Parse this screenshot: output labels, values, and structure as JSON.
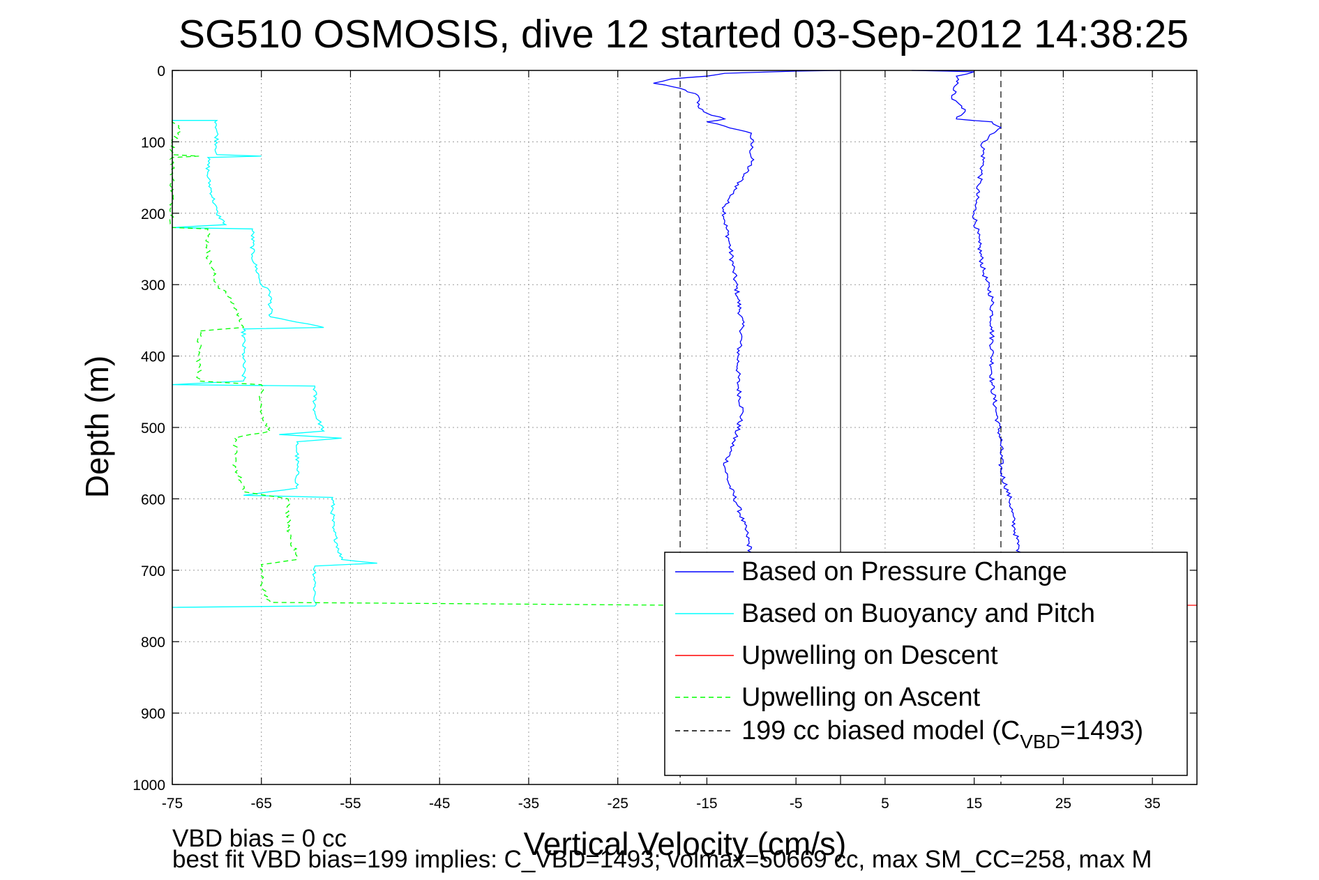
{
  "chart_data": {
    "type": "line",
    "title": "SG510 OSMOSIS, dive 12 started 03-Sep-2012 14:38:25",
    "xlabel": "Vertical Velocity (cm/s)",
    "ylabel": "Depth (m)",
    "xlim": [
      -75,
      40
    ],
    "ylim": [
      0,
      1000
    ],
    "y_reversed": true,
    "grid": true,
    "x_ticks": [
      "-75",
      "-65",
      "-55",
      "-45",
      "-35",
      "-25",
      "-15",
      "-5",
      "5",
      "15",
      "25",
      "35"
    ],
    "x_tick_values": [
      -75,
      -65,
      -55,
      -45,
      -35,
      -25,
      -15,
      -5,
      5,
      15,
      25,
      35
    ],
    "y_ticks": [
      "0",
      "100",
      "200",
      "300",
      "400",
      "500",
      "600",
      "700",
      "800",
      "900",
      "1000"
    ],
    "y_tick_values": [
      0,
      100,
      200,
      300,
      400,
      500,
      600,
      700,
      800,
      900,
      1000
    ],
    "legend_position": "bottom-right",
    "series": [
      {
        "name": "Based on Pressure Change",
        "color": "#0000ff",
        "style": "solid",
        "segments": [
          {
            "label": "descent",
            "points": [
              [
                0,
                0
              ],
              [
                -5,
                1
              ],
              [
                -13,
                4
              ],
              [
                -15,
                8
              ],
              [
                -19,
                12
              ],
              [
                -21,
                18
              ],
              [
                -18,
                25
              ],
              [
                -16,
                35
              ],
              [
                -16,
                50
              ],
              [
                -15,
                60
              ],
              [
                -13,
                68
              ],
              [
                -15,
                72
              ],
              [
                -13,
                78
              ],
              [
                -10,
                88
              ],
              [
                -10,
                110
              ],
              [
                -10,
                130
              ],
              [
                -11,
                150
              ],
              [
                -12,
                170
              ],
              [
                -13,
                190
              ],
              [
                -13,
                210
              ],
              [
                -12.5,
                240
              ],
              [
                -12,
                280
              ],
              [
                -11.5,
                320
              ],
              [
                -11,
                360
              ],
              [
                -11.5,
                400
              ],
              [
                -11.5,
                440
              ],
              [
                -11,
                480
              ],
              [
                -12,
                520
              ],
              [
                -13,
                555
              ],
              [
                -12.5,
                580
              ],
              [
                -11.5,
                610
              ],
              [
                -10.5,
                650
              ],
              [
                -10,
                680
              ]
            ]
          },
          {
            "label": "ascent",
            "points": [
              [
                8,
                0
              ],
              [
                12,
                1
              ],
              [
                15,
                2
              ],
              [
                13,
                8
              ],
              [
                13,
                20
              ],
              [
                12.5,
                40
              ],
              [
                14,
                55
              ],
              [
                13,
                68
              ],
              [
                17,
                72
              ],
              [
                18,
                80
              ],
              [
                16,
                100
              ],
              [
                16,
                130
              ],
              [
                15.5,
                160
              ],
              [
                15,
                200
              ],
              [
                15.5,
                240
              ],
              [
                16,
                280
              ],
              [
                17,
                320
              ],
              [
                17,
                360
              ],
              [
                17,
                400
              ],
              [
                17,
                440
              ],
              [
                17.5,
                480
              ],
              [
                18,
                520
              ],
              [
                18,
                560
              ],
              [
                19,
                600
              ],
              [
                19.5,
                640
              ],
              [
                20,
                670
              ],
              [
                20,
                680
              ]
            ]
          }
        ]
      },
      {
        "name": "Based on Buoyancy and Pitch",
        "color": "#00ffff",
        "style": "solid",
        "points": [
          [
            -75,
            70
          ],
          [
            -70,
            70
          ],
          [
            -70,
            118
          ],
          [
            -65,
            120
          ],
          [
            -71,
            122
          ],
          [
            -71,
            150
          ],
          [
            -70,
            200
          ],
          [
            -69,
            216
          ],
          [
            -75,
            220
          ],
          [
            -66,
            222
          ],
          [
            -66,
            260
          ],
          [
            -65,
            300
          ],
          [
            -64,
            310
          ],
          [
            -64,
            345
          ],
          [
            -58,
            360
          ],
          [
            -67,
            362
          ],
          [
            -67,
            400
          ],
          [
            -67,
            435
          ],
          [
            -75,
            440
          ],
          [
            -59,
            442
          ],
          [
            -59,
            480
          ],
          [
            -58,
            505
          ],
          [
            -63,
            510
          ],
          [
            -56,
            515
          ],
          [
            -61,
            520
          ],
          [
            -61,
            560
          ],
          [
            -61,
            585
          ],
          [
            -67,
            595
          ],
          [
            -57,
            598
          ],
          [
            -57,
            640
          ],
          [
            -56,
            685
          ],
          [
            -52,
            690
          ],
          [
            -59,
            694
          ],
          [
            -59,
            720
          ],
          [
            -59,
            750
          ],
          [
            -75,
            752
          ]
        ]
      },
      {
        "name": "Upwelling on Descent",
        "color": "#ff0000",
        "style": "solid",
        "points": [
          [
            37,
            749
          ],
          [
            40,
            749
          ]
        ]
      },
      {
        "name": "Upwelling on Ascent",
        "color": "#00ff00",
        "style": "dashed",
        "points": [
          [
            -75,
            70
          ],
          [
            -74,
            85
          ],
          [
            -75,
            100
          ],
          [
            -75,
            118
          ],
          [
            -72,
            120
          ],
          [
            -75,
            122
          ],
          [
            -75,
            220
          ],
          [
            -71,
            222
          ],
          [
            -71,
            260
          ],
          [
            -70,
            300
          ],
          [
            -69,
            312
          ],
          [
            -68,
            330
          ],
          [
            -67,
            360
          ],
          [
            -72,
            365
          ],
          [
            -72,
            400
          ],
          [
            -72,
            435
          ],
          [
            -65,
            440
          ],
          [
            -65,
            480
          ],
          [
            -64,
            505
          ],
          [
            -68,
            515
          ],
          [
            -68,
            550
          ],
          [
            -67,
            590
          ],
          [
            -62,
            600
          ],
          [
            -62,
            640
          ],
          [
            -61,
            685
          ],
          [
            -65,
            692
          ],
          [
            -65,
            720
          ],
          [
            -64,
            745
          ],
          [
            -18,
            749
          ],
          [
            -18,
            751
          ]
        ]
      },
      {
        "name": "199 cc biased model (C_VBD=1493)",
        "legend_main": "199 cc biased model (C",
        "legend_sub": "VBD",
        "legend_tail": "=1493)",
        "color": "#000000",
        "style": "dashed",
        "lines_x": [
          -18,
          18
        ]
      }
    ],
    "reference_lines": [
      {
        "x": 0,
        "color": "#000000",
        "style": "solid"
      }
    ]
  },
  "footer": {
    "line1": "VBD bias = 0 cc",
    "line2": "best fit VBD bias=199 implies: C_VBD=1493; volmax=50669 cc, max SM_CC=258, max M"
  }
}
